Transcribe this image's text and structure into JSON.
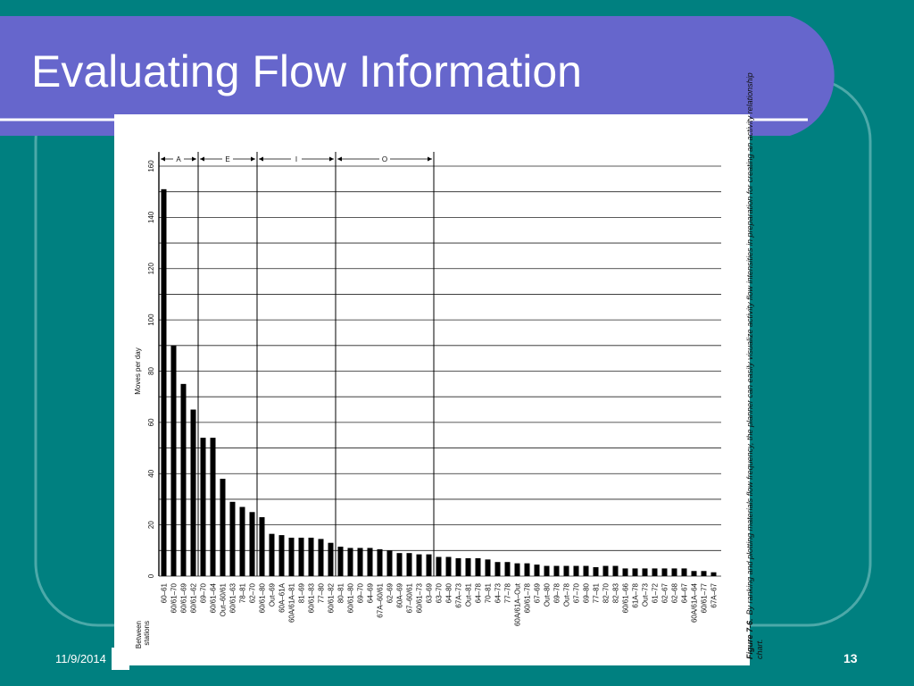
{
  "slide": {
    "title": "Evaluating Flow Information",
    "date": "11/9/2014",
    "page": "13"
  },
  "chart_data": {
    "type": "bar",
    "y_label": "Moves per day",
    "x_label": "Between stations",
    "zones": [
      "A",
      "E",
      "I",
      "O"
    ],
    "caption_lead": "Figure 7-6.",
    "caption": "By ranking and plotting materials flow frequency, the planner can easily visualize activity flow intensities in preparation for creating an activity relationship chart.",
    "categories": [
      "60–61",
      "60/61–70",
      "60/61–69",
      "60/61–62",
      "69–70",
      "60/61–64",
      "Out–60/61",
      "60/61–63",
      "78–81",
      "62–70",
      "60/61–80",
      "Out–69",
      "60A–61A",
      "60A/61A–81",
      "81–69",
      "60/61–83",
      "77–80",
      "60/61–82",
      "80–81",
      "60/61–80",
      "69–70",
      "64–69",
      "67A–60/61",
      "62–69",
      "60A–69",
      "67–60/61",
      "60/61–73",
      "63–69",
      "63–70",
      "64–80",
      "67A–73",
      "Out–81",
      "64–78",
      "70–81",
      "64–73",
      "77–78",
      "60A/61A–Out",
      "60/61–78",
      "67–69",
      "Out–80",
      "69–78",
      "Out–78",
      "67–70",
      "69–80",
      "77–81",
      "82–70",
      "82–83",
      "60/61–66",
      "61A–78",
      "Out–73",
      "61–72",
      "62–67",
      "62–68",
      "64–67",
      "60A/61A–64",
      "60/61–77",
      "67A–67"
    ],
    "values": [
      151,
      90,
      75,
      65,
      54,
      54,
      38,
      29,
      27,
      25,
      23,
      16.5,
      16,
      15,
      15,
      15,
      14.5,
      13,
      11.5,
      11,
      11,
      11,
      10.5,
      10,
      9,
      9,
      8.5,
      8.5,
      7.5,
      7.5,
      7,
      7,
      7,
      6.5,
      5.5,
      5.5,
      5,
      5,
      4.5,
      4,
      4,
      4,
      4,
      4,
      3.5,
      4,
      4,
      3,
      3,
      3,
      3,
      3,
      3,
      3,
      2,
      2,
      1.5
    ],
    "color": "#000000",
    "ylim": [
      0,
      160
    ],
    "yticks": [
      0,
      20,
      40,
      60,
      80,
      100,
      120,
      140,
      160
    ],
    "minor_yticks": [
      10,
      30,
      50,
      70,
      90,
      110,
      130,
      150
    ],
    "grid": true
  }
}
